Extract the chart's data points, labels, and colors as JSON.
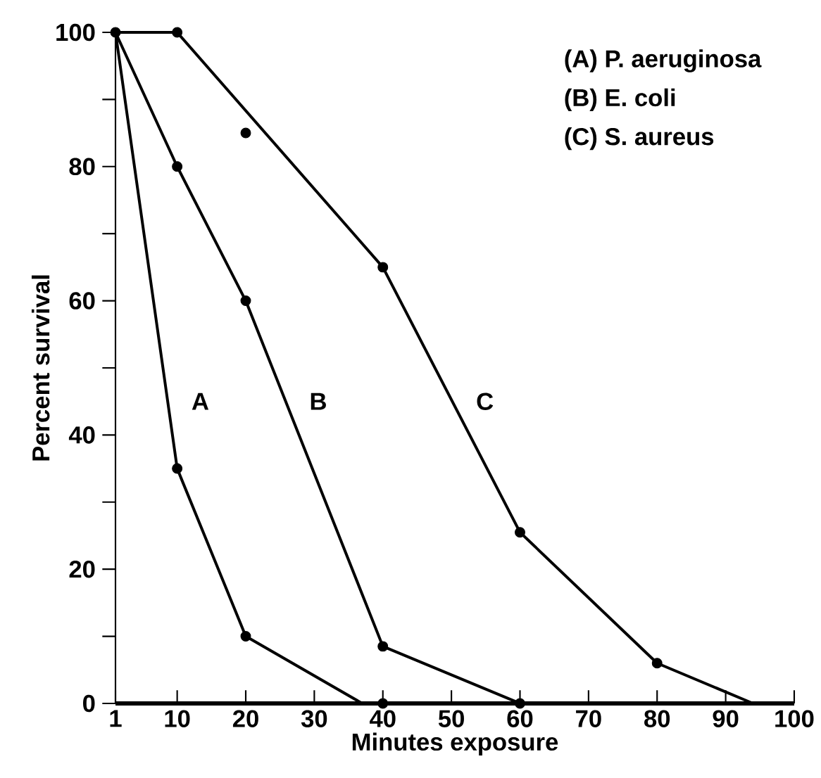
{
  "chart_data": {
    "type": "line",
    "xlabel": "Minutes exposure",
    "ylabel": "Percent survival",
    "xlim": [
      1,
      100
    ],
    "ylim": [
      0,
      100
    ],
    "xticks": [
      1,
      10,
      20,
      30,
      40,
      50,
      60,
      70,
      80,
      90,
      100
    ],
    "yticks": [
      0,
      {
        "value": 10,
        "label": null
      },
      20,
      {
        "value": 30,
        "label": null
      },
      40,
      {
        "value": 50,
        "label": null
      },
      60,
      {
        "value": 70,
        "label": null
      },
      80,
      {
        "value": 90,
        "label": null
      },
      100
    ],
    "line_style": "solid",
    "grid": false,
    "series": [
      {
        "name": "A",
        "marker": "none",
        "color": "#000000",
        "x": [
          1,
          10,
          20,
          37
        ],
        "values": [
          100,
          35,
          10,
          0
        ]
      },
      {
        "name": "B",
        "marker": "none",
        "color": "#000000",
        "x": [
          1,
          10,
          20,
          40,
          60
        ],
        "values": [
          100,
          80,
          60,
          8.5,
          0
        ]
      },
      {
        "name": "C",
        "marker": "none",
        "color": "#000000",
        "x": [
          1,
          10,
          40,
          60,
          80,
          94
        ],
        "values": [
          100,
          100,
          65,
          25.5,
          6,
          0
        ]
      },
      {
        "type": "scatter",
        "marker": "circle",
        "color": "#000000",
        "x": [
          1,
          10,
          20,
          40
        ],
        "values": [
          100,
          35,
          10,
          0
        ]
      },
      {
        "type": "scatter",
        "marker": "circle",
        "color": "#000000",
        "x": [
          10,
          20,
          40,
          60
        ],
        "values": [
          80,
          60,
          8.5,
          0
        ]
      },
      {
        "type": "scatter",
        "marker": "circle",
        "color": "#000000",
        "x": [
          10,
          20,
          40,
          60,
          80
        ],
        "values": [
          100,
          85,
          65,
          25.5,
          6
        ]
      }
    ],
    "annotations": [
      "(A)  P. aeruginosa",
      "(B)  E. coli",
      "(C)  S. aureus"
    ]
  }
}
